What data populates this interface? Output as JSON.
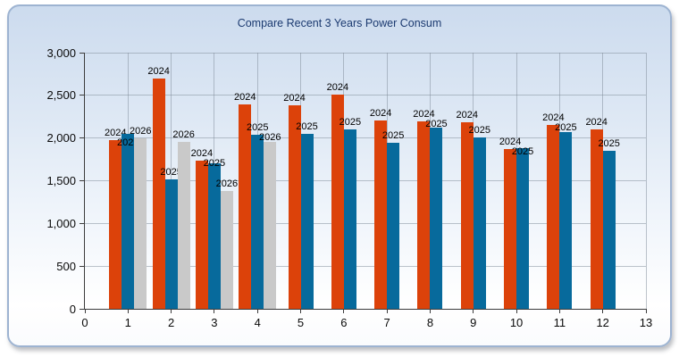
{
  "window": {
    "title": "Compare Recent 3 Years Power Consum"
  },
  "chart_data": {
    "type": "bar",
    "title": "Compare Recent 3 Years Power Consum",
    "xlabel": "",
    "ylabel": "",
    "xlim": [
      0,
      13
    ],
    "ylim": [
      0,
      3000
    ],
    "y_tick_interval": 500,
    "x_tick_interval": 1,
    "grid": true,
    "legend_position": "none",
    "bar_label_mode": "series-name-above-bar",
    "categories": [
      1,
      2,
      3,
      4,
      5,
      6,
      7,
      8,
      9,
      10,
      11,
      12
    ],
    "series": [
      {
        "name": "2024",
        "color": "#dc420a",
        "values": [
          1975,
          2700,
          1740,
          2390,
          2380,
          2505,
          2210,
          2195,
          2180,
          1870,
          2155,
          2105
        ]
      },
      {
        "name": "2025",
        "color": "#076a9c",
        "values": [
          2050,
          1520,
          1705,
          2035,
          2045,
          2100,
          1945,
          2120,
          2005,
          1880,
          2075,
          1850
        ]
      },
      {
        "name": "2026",
        "color": "#c9c9c9",
        "values": [
          2000,
          1950,
          1375,
          1950,
          null,
          null,
          null,
          null,
          null,
          null,
          null,
          null
        ]
      }
    ],
    "colors": {
      "panel_border": "#9db3d1",
      "panel_top": "#ccdbee",
      "panel_bottom": "#ffffff",
      "title_text": "#1b3a70",
      "axis_line": "#3c3c3c",
      "gridline": "#7d8998",
      "tick_text": "#0a0a0a",
      "bar_label_text": "#000000"
    }
  }
}
